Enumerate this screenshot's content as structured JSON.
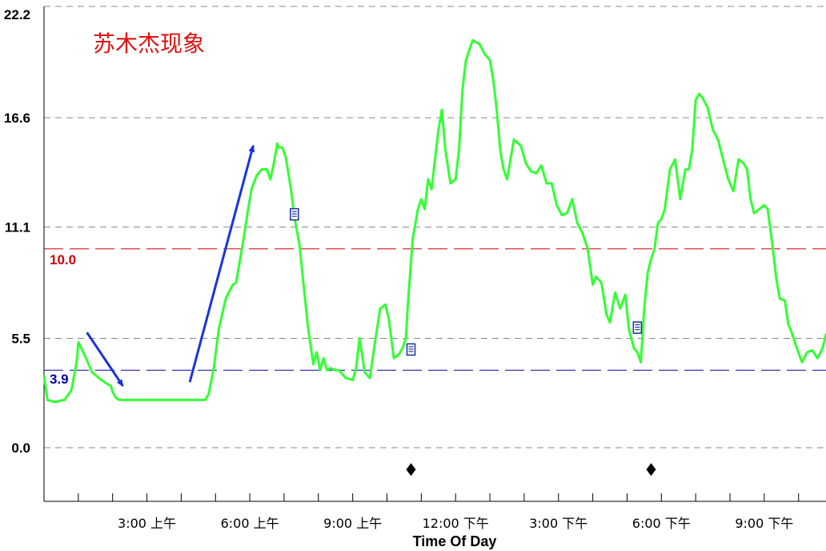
{
  "chart_data": {
    "type": "line",
    "title": "苏木杰现象",
    "xlabel": "Time Of Day",
    "ylabel": "",
    "xlim": [
      0,
      22.8
    ],
    "ylim": [
      -2.7,
      22.2
    ],
    "y_ticks": [
      "22.2",
      "16.6",
      "11.1",
      "5.5",
      "0.0"
    ],
    "y_tick_values": [
      22.2,
      16.6,
      11.1,
      5.5,
      0.0
    ],
    "x_minor_ticks": [
      1,
      2,
      3,
      4,
      5,
      6,
      7,
      8,
      9,
      10,
      11,
      12,
      13,
      14,
      15,
      16,
      17,
      18,
      19,
      20,
      21,
      22
    ],
    "x_tick_labels": [
      {
        "x": 3,
        "label": "3:00 上午"
      },
      {
        "x": 6,
        "label": "6:00 上午"
      },
      {
        "x": 9,
        "label": "9:00 上午"
      },
      {
        "x": 12,
        "label": "12:00 下午"
      },
      {
        "x": 15,
        "label": "3:00 下午"
      },
      {
        "x": 18,
        "label": "6:00 下午"
      },
      {
        "x": 21,
        "label": "9:00 下午"
      }
    ],
    "grid": "dashed horizontal at y ticks",
    "reference_lines": [
      {
        "y": 10.0,
        "label": "10.0",
        "color": "#cc0000"
      },
      {
        "y": 3.9,
        "label": "3.9",
        "color": "#0000aa"
      }
    ],
    "series": [
      {
        "color": "#33ff33",
        "x": [
          0,
          0.1,
          0.3,
          0.6,
          0.8,
          0.95,
          1.0,
          1.2,
          1.4,
          1.6,
          1.85,
          1.95,
          2.0,
          2.1,
          2.2,
          2.5,
          3.0,
          3.5,
          4.0,
          4.4,
          4.7,
          4.8,
          4.95,
          5.1,
          5.3,
          5.5,
          5.6,
          5.8,
          5.95,
          6.05,
          6.2,
          6.35,
          6.5,
          6.6,
          6.7,
          6.8,
          6.85,
          6.95,
          7.05,
          7.2,
          7.3,
          7.45,
          7.55,
          7.7,
          7.85,
          7.95,
          8.05,
          8.15,
          8.25,
          8.35,
          8.5,
          8.6,
          8.8,
          9.0,
          9.1,
          9.2,
          9.35,
          9.5,
          9.65,
          9.8,
          9.95,
          10.05,
          10.2,
          10.35,
          10.45,
          10.55,
          10.6,
          10.75,
          10.9,
          11.0,
          11.1,
          11.2,
          11.3,
          11.4,
          11.5,
          11.6,
          11.7,
          11.85,
          12.0,
          12.1,
          12.2,
          12.3,
          12.5,
          12.7,
          12.85,
          13.0,
          13.1,
          13.2,
          13.3,
          13.4,
          13.5,
          13.7,
          13.9,
          14.05,
          14.2,
          14.35,
          14.5,
          14.65,
          14.8,
          14.95,
          15.1,
          15.25,
          15.4,
          15.55,
          15.7,
          15.85,
          16.0,
          16.1,
          16.25,
          16.4,
          16.5,
          16.65,
          16.8,
          16.95,
          17.05,
          17.2,
          17.3,
          17.4,
          17.5,
          17.6,
          17.7,
          17.8,
          17.9,
          18.0,
          18.1,
          18.25,
          18.4,
          18.55,
          18.7,
          18.8,
          18.9,
          19.0,
          19.1,
          19.2,
          19.35,
          19.5,
          19.65,
          19.8,
          19.95,
          20.1,
          20.25,
          20.4,
          20.5,
          20.6,
          20.7,
          20.85,
          21.0,
          21.1,
          21.25,
          21.35,
          21.45,
          21.6,
          21.7,
          21.8,
          21.95,
          22.1,
          22.25,
          22.4,
          22.55,
          22.7,
          22.8
        ],
        "y": [
          3.6,
          2.4,
          2.3,
          2.4,
          2.9,
          4.3,
          5.3,
          4.6,
          3.8,
          3.5,
          3.2,
          3.1,
          2.8,
          2.5,
          2.4,
          2.4,
          2.4,
          2.4,
          2.4,
          2.4,
          2.4,
          2.7,
          4.0,
          6.0,
          7.5,
          8.2,
          8.3,
          10.3,
          12.0,
          13.0,
          13.7,
          14.0,
          14.0,
          13.5,
          14.3,
          15.3,
          15.1,
          15.1,
          14.6,
          13.0,
          11.6,
          10.2,
          8.5,
          6.0,
          4.2,
          4.8,
          3.9,
          4.5,
          3.9,
          4.0,
          3.9,
          3.9,
          3.5,
          3.4,
          4.0,
          5.5,
          3.8,
          3.5,
          5.3,
          7.0,
          7.2,
          6.5,
          4.5,
          4.7,
          5.0,
          5.5,
          7.0,
          10.5,
          12.0,
          12.5,
          12.0,
          13.5,
          13.0,
          14.5,
          16.0,
          17.0,
          15.0,
          13.3,
          13.5,
          15.0,
          18.0,
          19.5,
          20.5,
          20.3,
          19.8,
          19.5,
          18.5,
          17.0,
          15.0,
          14.0,
          13.5,
          15.5,
          15.2,
          14.3,
          13.9,
          13.8,
          14.2,
          13.3,
          13.3,
          12.2,
          11.7,
          11.8,
          12.5,
          11.3,
          10.8,
          10.0,
          8.2,
          8.6,
          8.3,
          6.7,
          6.3,
          7.8,
          7.0,
          7.7,
          6.0,
          5.0,
          4.8,
          4.3,
          7.0,
          8.8,
          9.5,
          10.0,
          11.3,
          11.5,
          12.0,
          14.0,
          14.5,
          12.5,
          14.0,
          14.0,
          15.0,
          17.5,
          17.8,
          17.6,
          17.1,
          16.0,
          15.5,
          14.5,
          13.5,
          12.9,
          14.5,
          14.3,
          14.0,
          12.5,
          11.8,
          12.0,
          12.2,
          12.0,
          10.0,
          8.5,
          7.5,
          7.4,
          6.2,
          5.8,
          5.0,
          4.3,
          4.8,
          4.9,
          4.5,
          5.0,
          5.7
        ]
      }
    ],
    "annotations": [
      {
        "type": "arrow",
        "color": "#1a33dd",
        "from": [
          1.25,
          5.8
        ],
        "to": [
          2.3,
          3.1
        ]
      },
      {
        "type": "arrow",
        "color": "#1a33dd",
        "from": [
          4.25,
          3.3
        ],
        "to": [
          6.1,
          15.2
        ]
      },
      {
        "type": "note-icon",
        "x": 7.3,
        "y": 11.7
      },
      {
        "type": "note-icon",
        "x": 10.7,
        "y": 4.9
      },
      {
        "type": "note-icon",
        "x": 17.3,
        "y": 6.0
      },
      {
        "type": "diamond-marker",
        "x": 10.7,
        "y": -1.1
      },
      {
        "type": "diamond-marker",
        "x": 17.7,
        "y": -1.1
      }
    ],
    "colors": {
      "title": "#dd1111",
      "grid": "#888888",
      "axis": "#000000"
    }
  }
}
